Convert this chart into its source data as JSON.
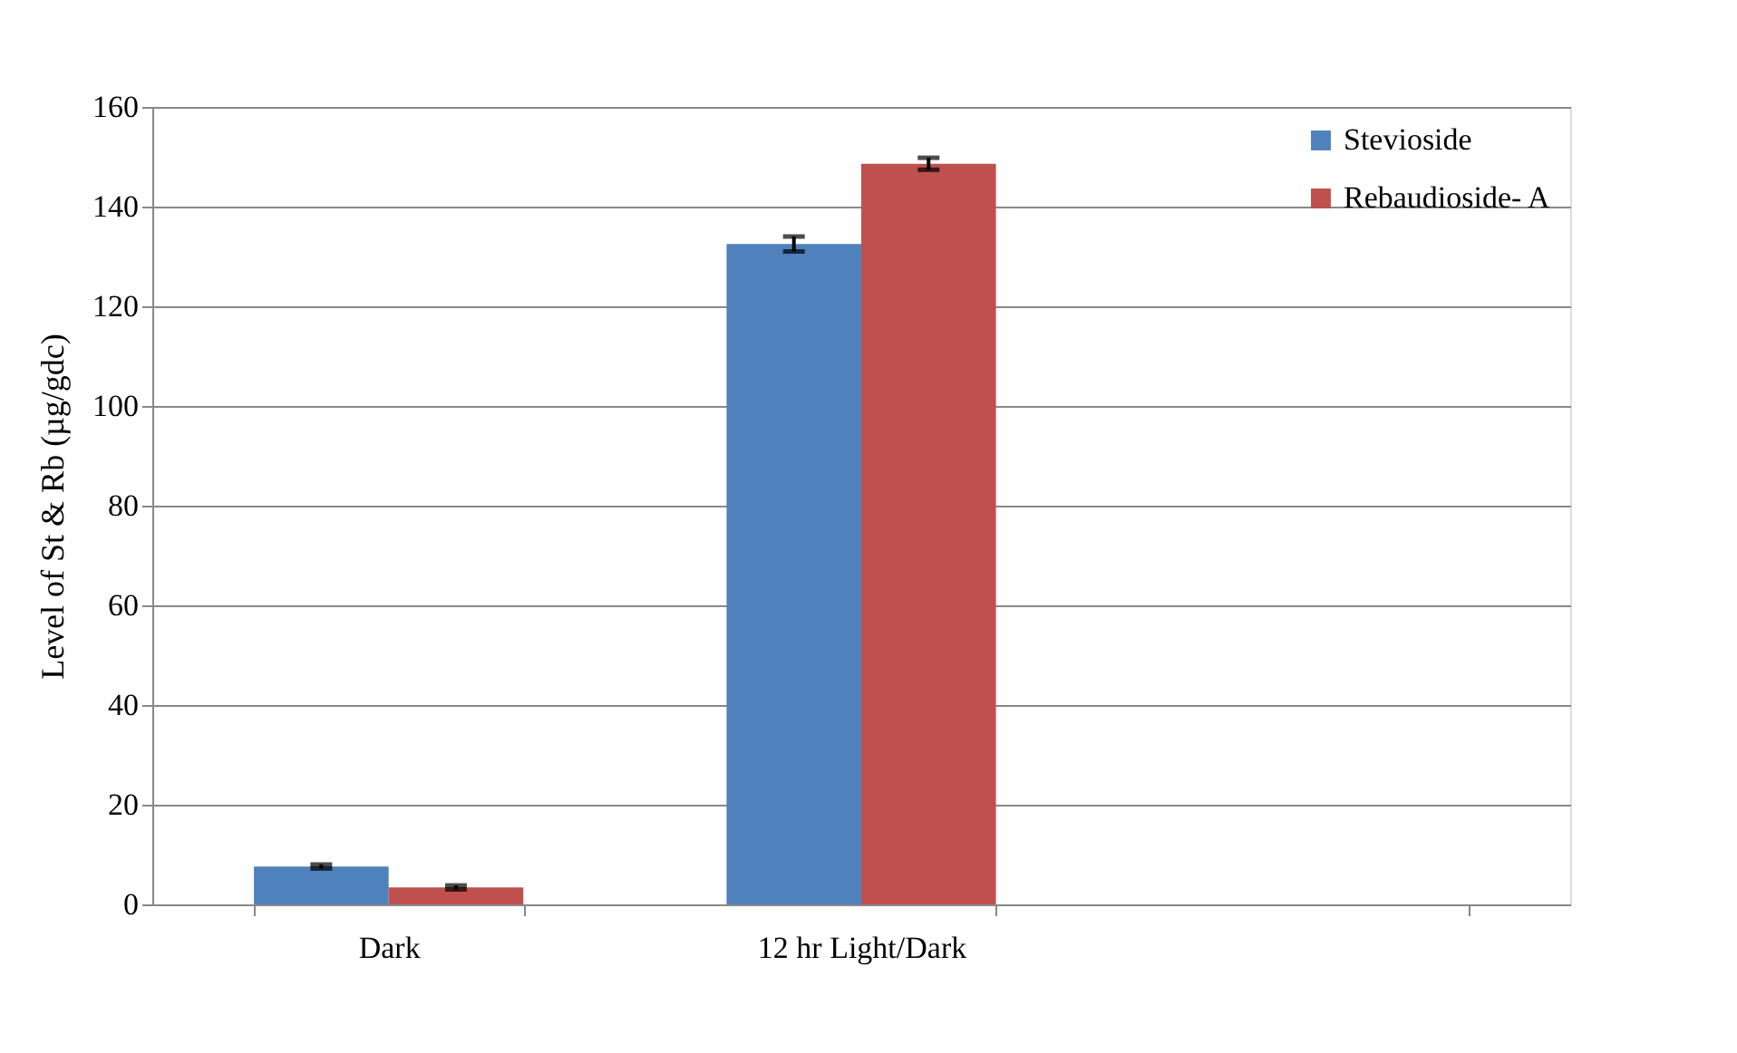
{
  "chart_data": {
    "type": "bar",
    "ylabel": "Level of St & Rb (µg/gdc)",
    "categories": [
      "Dark",
      "12 hr Light/Dark",
      null
    ],
    "series": [
      {
        "name": "Stevioside",
        "color": "#4f81bd",
        "values": [
          7.6,
          132.5,
          null
        ],
        "errors": [
          0.4,
          1.5,
          null
        ]
      },
      {
        "name": "Rebaudioside- A",
        "color": "#c0504d",
        "values": [
          3.4,
          148.6,
          null
        ],
        "errors": [
          0.4,
          1.2,
          null
        ]
      }
    ],
    "ylim": [
      0,
      160
    ],
    "yticks": [
      0,
      20,
      40,
      60,
      80,
      100,
      120,
      140,
      160
    ],
    "grid": "y",
    "legend": "top right"
  }
}
